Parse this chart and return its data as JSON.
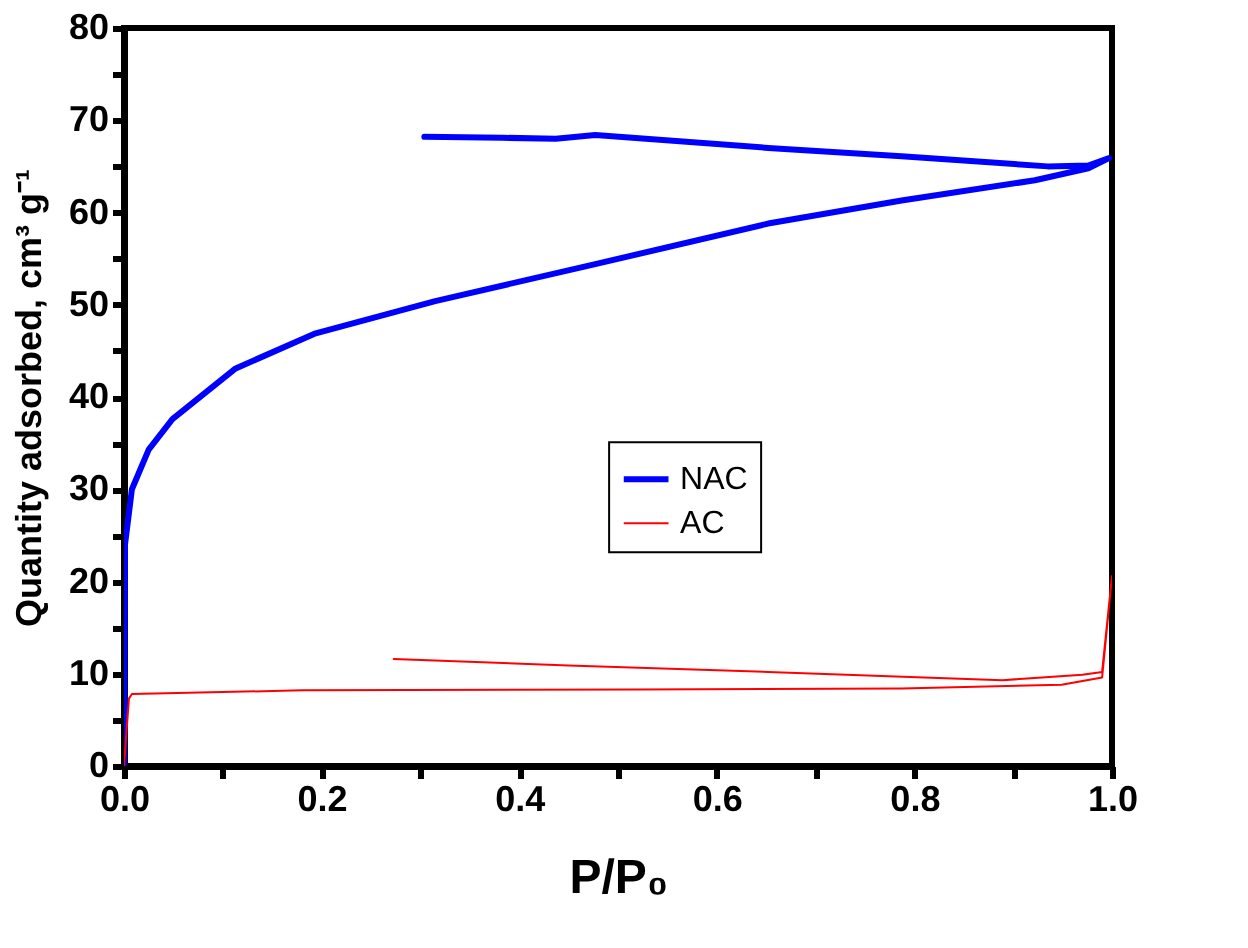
{
  "chart_data": {
    "type": "line",
    "xlabel": "P/P₀",
    "ylabel": "Quantity adsorbed, cm³ g⁻¹",
    "xlim": [
      0,
      1
    ],
    "ylim": [
      0,
      80
    ],
    "xticks": [
      {
        "value": 0,
        "label": "0.0"
      },
      {
        "value": 0.1,
        "label": null
      },
      {
        "value": 0.2,
        "label": "0.2"
      },
      {
        "value": 0.3,
        "label": null
      },
      {
        "value": 0.4,
        "label": "0.4"
      },
      {
        "value": 0.5,
        "label": null
      },
      {
        "value": 0.6,
        "label": "0.6"
      },
      {
        "value": 0.7,
        "label": null
      },
      {
        "value": 0.8,
        "label": "0.8"
      },
      {
        "value": 0.9,
        "label": null
      },
      {
        "value": 1,
        "label": "1.0"
      }
    ],
    "yticks": [
      0,
      {
        "value": 5,
        "label": null
      },
      10,
      {
        "value": 15,
        "label": null
      },
      20,
      {
        "value": 25,
        "label": null
      },
      30,
      {
        "value": 35,
        "label": null
      },
      40,
      {
        "value": 45,
        "label": null
      },
      50,
      {
        "value": 55,
        "label": null
      },
      60,
      {
        "value": 65,
        "label": null
      },
      70,
      {
        "value": 75,
        "label": null
      },
      80
    ],
    "grid": false,
    "legend": "center",
    "marker": "none",
    "line_style": "solid",
    "series": [
      {
        "name": "NAC",
        "color": "#0000ff",
        "x": [
          0,
          0.001,
          0.008,
          0.025,
          0.049,
          0.113,
          0.194,
          0.315,
          0.477,
          0.652,
          0.787,
          0.922,
          0.976,
          0.997,
          0.976,
          0.935,
          0.787,
          0.652,
          0.477,
          0.437,
          0.383,
          0.304
        ],
        "values": [
          0,
          24,
          30,
          34.3,
          37.6,
          43.1,
          46.9,
          50.4,
          54.4,
          58.8,
          61.3,
          63.5,
          64.8,
          65.9,
          65.1,
          65,
          66.1,
          67,
          68.4,
          68,
          68.1,
          68.2
        ]
      },
      {
        "name": "AC",
        "color": "#ff0000",
        "x": [
          0,
          0.001,
          0.005,
          0.008,
          0.18,
          0.518,
          0.787,
          0.949,
          0.99,
          1,
          0.99,
          0.97,
          0.889,
          0.652,
          0.45,
          0.273
        ],
        "values": [
          0,
          1.5,
          7.3,
          7.8,
          8.2,
          8.3,
          8.4,
          8.8,
          9.6,
          20.6,
          10.2,
          9.9,
          9.3,
          10.2,
          10.9,
          11.6
        ]
      }
    ]
  }
}
